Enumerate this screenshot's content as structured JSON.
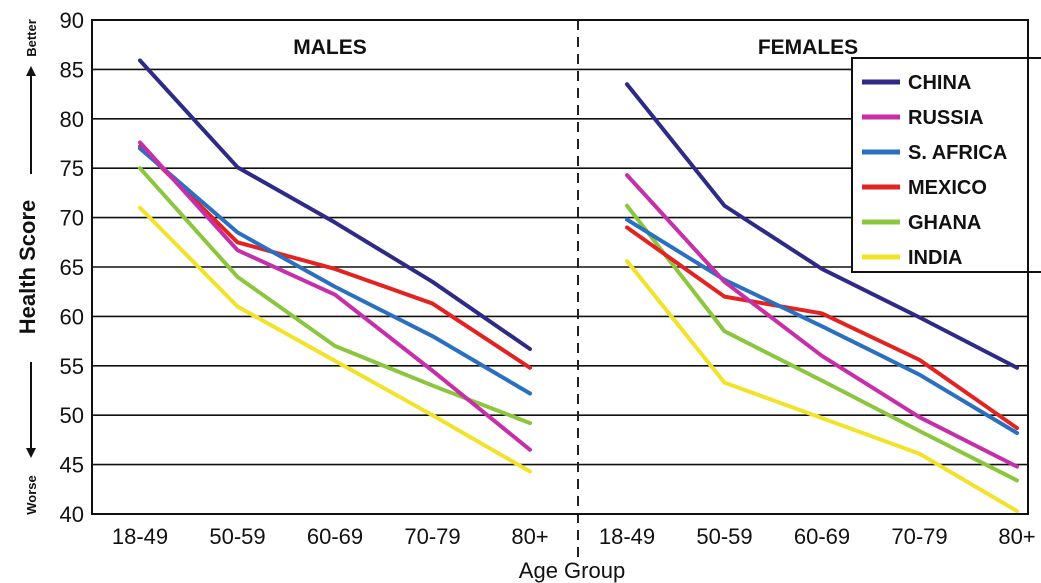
{
  "chart_data": {
    "type": "line",
    "ylabel": "Health Score",
    "ylabel_better": "Better",
    "ylabel_worse": "Worse",
    "xlabel": "Age Group",
    "ylim": [
      40,
      90
    ],
    "yticks": [
      40,
      45,
      50,
      55,
      60,
      65,
      70,
      75,
      80,
      85,
      90
    ],
    "grid": true,
    "legend_position": "top-right",
    "categories": [
      "18-49",
      "50-59",
      "60-69",
      "70-79",
      "80+"
    ],
    "panels": [
      {
        "title": "MALES",
        "series": [
          {
            "name": "CHINA",
            "color": "#2e2a86",
            "values": [
              85.9,
              75.1,
              69.5,
              63.5,
              56.7
            ]
          },
          {
            "name": "RUSSIA",
            "color": "#c62fa8",
            "values": [
              77.6,
              66.7,
              62.2,
              54.5,
              46.5
            ]
          },
          {
            "name": "S. AFRICA",
            "color": "#2a6fc0",
            "values": [
              77.0,
              68.5,
              63.0,
              58.0,
              52.2
            ]
          },
          {
            "name": "MEXICO",
            "color": "#e32222",
            "values": [
              77.2,
              67.5,
              64.8,
              61.3,
              54.8
            ]
          },
          {
            "name": "GHANA",
            "color": "#8cc63f",
            "values": [
              75.0,
              64.0,
              57.0,
              53.0,
              49.2
            ]
          },
          {
            "name": "INDIA",
            "color": "#f3e22a",
            "values": [
              71.0,
              61.0,
              55.5,
              50.0,
              44.3
            ]
          }
        ]
      },
      {
        "title": "FEMALES",
        "series": [
          {
            "name": "CHINA",
            "color": "#2e2a86",
            "values": [
              83.5,
              71.2,
              64.8,
              59.9,
              54.8
            ]
          },
          {
            "name": "RUSSIA",
            "color": "#c62fa8",
            "values": [
              74.3,
              63.5,
              56.0,
              49.8,
              44.8
            ]
          },
          {
            "name": "S. AFRICA",
            "color": "#2a6fc0",
            "values": [
              69.8,
              63.7,
              59.0,
              54.1,
              48.2
            ]
          },
          {
            "name": "MEXICO",
            "color": "#e32222",
            "values": [
              69.0,
              62.0,
              60.3,
              55.6,
              48.7
            ]
          },
          {
            "name": "GHANA",
            "color": "#8cc63f",
            "values": [
              71.2,
              58.5,
              53.5,
              48.4,
              43.4
            ]
          },
          {
            "name": "INDIA",
            "color": "#f3e22a",
            "values": [
              65.6,
              53.3,
              49.7,
              46.1,
              40.3
            ]
          }
        ]
      }
    ],
    "legend": [
      {
        "name": "CHINA",
        "color": "#2e2a86"
      },
      {
        "name": "RUSSIA",
        "color": "#c62fa8"
      },
      {
        "name": "S. AFRICA",
        "color": "#2a6fc0"
      },
      {
        "name": "MEXICO",
        "color": "#e32222"
      },
      {
        "name": "GHANA",
        "color": "#8cc63f"
      },
      {
        "name": "INDIA",
        "color": "#f3e22a"
      }
    ]
  }
}
